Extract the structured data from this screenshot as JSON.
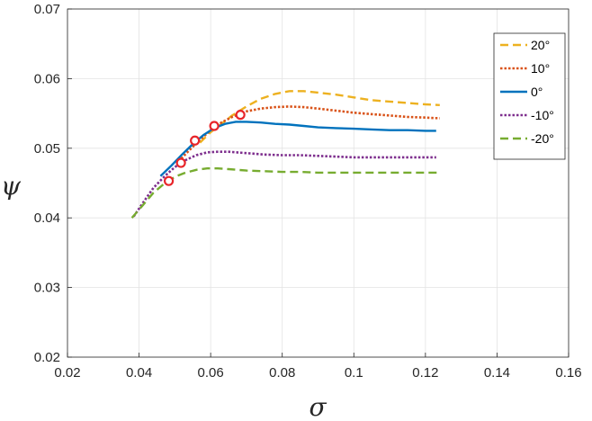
{
  "chart_data": {
    "type": "line",
    "title": "",
    "xlabel": "σ",
    "ylabel": "ψ",
    "xlim": [
      0.02,
      0.16
    ],
    "ylim": [
      0.02,
      0.07
    ],
    "xticks": [
      0.02,
      0.04,
      0.06,
      0.08,
      0.1,
      0.12,
      0.14,
      0.16
    ],
    "yticks": [
      0.02,
      0.03,
      0.04,
      0.05,
      0.06,
      0.07
    ],
    "xtick_labels": [
      "0.02",
      "0.04",
      "0.06",
      "0.08",
      "0.1",
      "0.12",
      "0.14",
      "0.16"
    ],
    "ytick_labels": [
      "0.02",
      "0.03",
      "0.04",
      "0.05",
      "0.06",
      "0.07"
    ],
    "grid": true,
    "legend_position": "top-right",
    "series": [
      {
        "name": "20°",
        "color": "#EDB120",
        "dash": "dashed",
        "x": [
          0.057,
          0.06,
          0.063,
          0.066,
          0.07,
          0.074,
          0.078,
          0.082,
          0.086,
          0.09,
          0.095,
          0.1,
          0.105,
          0.11,
          0.115,
          0.12,
          0.124
        ],
        "y": [
          0.0508,
          0.0523,
          0.0535,
          0.0547,
          0.056,
          0.0571,
          0.0578,
          0.0582,
          0.0582,
          0.058,
          0.0577,
          0.0573,
          0.0569,
          0.0567,
          0.0565,
          0.0563,
          0.0562
        ]
      },
      {
        "name": "10°",
        "color": "#D95319",
        "dash": "dotted",
        "x": [
          0.051,
          0.054,
          0.057,
          0.06,
          0.063,
          0.066,
          0.068,
          0.07,
          0.074,
          0.078,
          0.082,
          0.086,
          0.09,
          0.095,
          0.1,
          0.105,
          0.11,
          0.115,
          0.12,
          0.124
        ],
        "y": [
          0.0481,
          0.0497,
          0.0512,
          0.0526,
          0.0537,
          0.0545,
          0.0549,
          0.0553,
          0.0557,
          0.0559,
          0.056,
          0.0559,
          0.0557,
          0.0554,
          0.0551,
          0.0549,
          0.0547,
          0.0545,
          0.0544,
          0.0543
        ]
      },
      {
        "name": "0°",
        "color": "#0072BD",
        "dash": "solid",
        "x": [
          0.046,
          0.049,
          0.052,
          0.055,
          0.058,
          0.061,
          0.064,
          0.067,
          0.07,
          0.074,
          0.078,
          0.082,
          0.086,
          0.09,
          0.095,
          0.1,
          0.105,
          0.11,
          0.115,
          0.12,
          0.123
        ],
        "y": [
          0.046,
          0.0475,
          0.0491,
          0.0506,
          0.0519,
          0.0529,
          0.0535,
          0.0538,
          0.0538,
          0.0537,
          0.0535,
          0.0534,
          0.0532,
          0.053,
          0.0529,
          0.0528,
          0.0527,
          0.0526,
          0.0526,
          0.0525,
          0.0525
        ]
      },
      {
        "name": "-10°",
        "color": "#7E2F8E",
        "dash": "dotted",
        "x": [
          0.0385,
          0.041,
          0.044,
          0.047,
          0.05,
          0.053,
          0.056,
          0.059,
          0.062,
          0.065,
          0.07,
          0.075,
          0.08,
          0.085,
          0.09,
          0.095,
          0.1,
          0.105,
          0.11,
          0.115,
          0.12,
          0.123
        ],
        "y": [
          0.0402,
          0.0421,
          0.0443,
          0.0459,
          0.0473,
          0.0483,
          0.049,
          0.0494,
          0.0495,
          0.0495,
          0.0493,
          0.0491,
          0.049,
          0.049,
          0.0489,
          0.0488,
          0.0487,
          0.0487,
          0.0487,
          0.0487,
          0.0487,
          0.0487
        ]
      },
      {
        "name": "-20°",
        "color": "#77AC30",
        "dash": "dashed",
        "x": [
          0.038,
          0.041,
          0.044,
          0.047,
          0.05,
          0.053,
          0.056,
          0.059,
          0.062,
          0.065,
          0.07,
          0.075,
          0.08,
          0.085,
          0.09,
          0.095,
          0.1,
          0.105,
          0.11,
          0.115,
          0.12,
          0.124
        ],
        "y": [
          0.04,
          0.0418,
          0.0436,
          0.0449,
          0.0459,
          0.0465,
          0.0469,
          0.0471,
          0.0471,
          0.047,
          0.0468,
          0.0467,
          0.0466,
          0.0466,
          0.0465,
          0.0465,
          0.0465,
          0.0465,
          0.0465,
          0.0465,
          0.0465,
          0.0465
        ]
      }
    ],
    "markers": [
      {
        "x": 0.0483,
        "y": 0.0453
      },
      {
        "x": 0.0517,
        "y": 0.0479
      },
      {
        "x": 0.0556,
        "y": 0.0511
      },
      {
        "x": 0.061,
        "y": 0.0532
      },
      {
        "x": 0.0683,
        "y": 0.0548
      }
    ],
    "marker_color": "#E8252A"
  }
}
